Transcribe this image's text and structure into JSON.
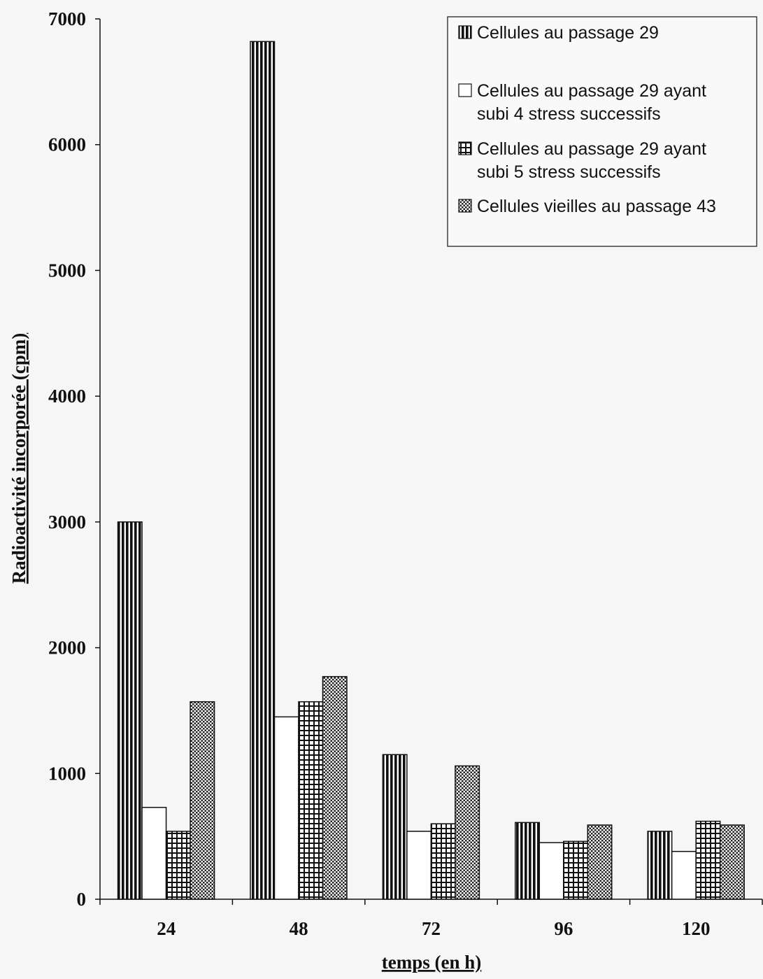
{
  "chart_data": {
    "type": "bar",
    "title": "",
    "xlabel": "temps (en h)",
    "ylabel": "Radioactivité incorporée (cpm)",
    "ylim": [
      0,
      7000
    ],
    "yticks": [
      0,
      1000,
      2000,
      3000,
      4000,
      5000,
      6000,
      7000
    ],
    "categories": [
      "24",
      "48",
      "72",
      "96",
      "120"
    ],
    "grid": false,
    "legend_position": "top-right",
    "series": [
      {
        "name": "Cellules au passage 29",
        "pattern": "vertical-stripes",
        "values": [
          3000,
          6820,
          1150,
          610,
          540
        ]
      },
      {
        "name": "Cellules au passage 29 ayant subi 4 stress successifs",
        "pattern": "blank",
        "values": [
          730,
          1450,
          540,
          450,
          380
        ]
      },
      {
        "name": "Cellules au passage 29 ayant subi 5 stress successifs",
        "pattern": "grid",
        "values": [
          540,
          1570,
          600,
          460,
          620
        ]
      },
      {
        "name": "Cellules vieilles au passage 43",
        "pattern": "crosshatch",
        "values": [
          1570,
          1770,
          1060,
          590,
          590
        ]
      }
    ],
    "colors": {
      "ink": "#111111",
      "bar_fill": "#ffffff",
      "background": "#f6f6f6"
    }
  }
}
